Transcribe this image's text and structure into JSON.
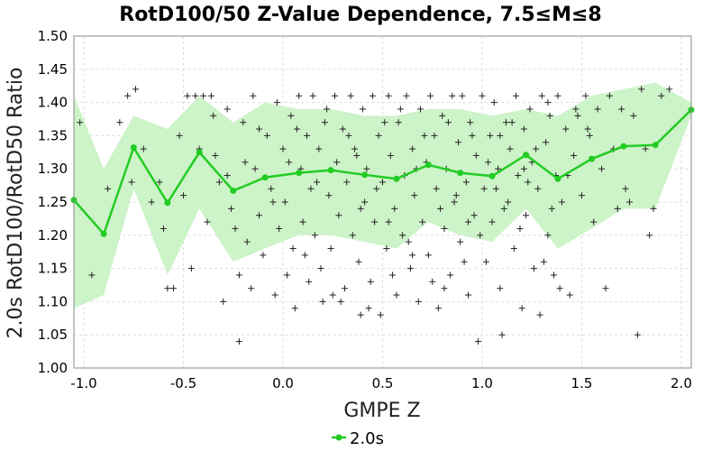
{
  "colors": {
    "band": "#cdf3c8",
    "line": "#22cc22",
    "scatter": "#222222",
    "grid": "#dddddd",
    "axis": "#888888"
  },
  "chart_data": {
    "type": "scatter",
    "title": "RotD100/50 Z-Value Dependence, 7.5≤M≤8",
    "xlabel": "GMPE Z",
    "ylabel": "2.0s RotD100/RotD50 Ratio",
    "xlim": [
      -1.05,
      2.05
    ],
    "ylim": [
      1.0,
      1.5
    ],
    "xticks": [
      -1.0,
      -0.5,
      0.0,
      0.5,
      1.0,
      1.5,
      2.0
    ],
    "xtick_labels": [
      "-1.0",
      "-0.5",
      "0.0",
      "0.5",
      "1.0",
      "1.5",
      "2.0"
    ],
    "yticks": [
      1.0,
      1.05,
      1.1,
      1.15,
      1.2,
      1.25,
      1.3,
      1.35,
      1.4,
      1.45,
      1.5
    ],
    "ytick_labels": [
      "1.00",
      "1.05",
      "1.10",
      "1.15",
      "1.20",
      "1.25",
      "1.30",
      "1.35",
      "1.40",
      "1.45",
      "1.50"
    ],
    "grid": true,
    "legend_position": "bottom-center",
    "series": [
      {
        "name": "2.0s",
        "type": "line",
        "x": [
          -1.05,
          -0.9,
          -0.75,
          -0.58,
          -0.42,
          -0.25,
          -0.09,
          0.08,
          0.24,
          0.41,
          0.57,
          0.73,
          0.89,
          1.05,
          1.22,
          1.38,
          1.55,
          1.71,
          1.87,
          2.05
        ],
        "y": [
          1.253,
          1.202,
          1.332,
          1.249,
          1.325,
          1.267,
          1.287,
          1.294,
          1.298,
          1.291,
          1.285,
          1.306,
          1.294,
          1.289,
          1.321,
          1.285,
          1.315,
          1.334,
          1.336,
          1.389
        ]
      }
    ],
    "band": {
      "x": [
        -1.05,
        -0.9,
        -0.75,
        -0.58,
        -0.42,
        -0.25,
        -0.09,
        0.08,
        0.24,
        0.41,
        0.57,
        0.73,
        0.89,
        1.05,
        1.22,
        1.38,
        1.55,
        1.71,
        1.87,
        2.05
      ],
      "upper": [
        1.41,
        1.3,
        1.38,
        1.36,
        1.41,
        1.37,
        1.4,
        1.39,
        1.39,
        1.38,
        1.38,
        1.39,
        1.39,
        1.38,
        1.39,
        1.38,
        1.41,
        1.42,
        1.43,
        1.4
      ],
      "lower": [
        1.09,
        1.11,
        1.27,
        1.14,
        1.24,
        1.16,
        1.18,
        1.2,
        1.2,
        1.19,
        1.18,
        1.22,
        1.2,
        1.19,
        1.24,
        1.18,
        1.21,
        1.24,
        1.24,
        1.38
      ]
    },
    "scatter": [
      [
        -1.02,
        1.37
      ],
      [
        -0.96,
        1.14
      ],
      [
        -0.88,
        1.27
      ],
      [
        -0.82,
        1.37
      ],
      [
        -0.78,
        1.41
      ],
      [
        -0.76,
        1.28
      ],
      [
        -0.74,
        1.42
      ],
      [
        -0.7,
        1.33
      ],
      [
        -0.66,
        1.25
      ],
      [
        -0.62,
        1.28
      ],
      [
        -0.6,
        1.21
      ],
      [
        -0.58,
        1.12
      ],
      [
        -0.55,
        1.12
      ],
      [
        -0.52,
        1.35
      ],
      [
        -0.5,
        1.26
      ],
      [
        -0.48,
        1.41
      ],
      [
        -0.46,
        1.15
      ],
      [
        -0.44,
        1.41
      ],
      [
        -0.42,
        1.33
      ],
      [
        -0.4,
        1.41
      ],
      [
        -0.38,
        1.22
      ],
      [
        -0.36,
        1.41
      ],
      [
        -0.34,
        1.32
      ],
      [
        -0.32,
        1.28
      ],
      [
        -0.3,
        1.1
      ],
      [
        -0.28,
        1.39
      ],
      [
        -0.26,
        1.24
      ],
      [
        -0.24,
        1.21
      ],
      [
        -0.22,
        1.14
      ],
      [
        -0.22,
        1.04
      ],
      [
        -0.2,
        1.37
      ],
      [
        -0.18,
        1.19
      ],
      [
        -0.16,
        1.12
      ],
      [
        -0.15,
        1.41
      ],
      [
        -0.14,
        1.3
      ],
      [
        -0.12,
        1.23
      ],
      [
        -0.1,
        1.17
      ],
      [
        -0.08,
        1.35
      ],
      [
        -0.06,
        1.27
      ],
      [
        -0.04,
        1.11
      ],
      [
        -0.03,
        1.4
      ],
      [
        -0.02,
        1.21
      ],
      [
        0.0,
        1.33
      ],
      [
        0.01,
        1.25
      ],
      [
        0.02,
        1.14
      ],
      [
        0.04,
        1.38
      ],
      [
        0.05,
        1.18
      ],
      [
        0.06,
        1.09
      ],
      [
        0.08,
        1.41
      ],
      [
        0.09,
        1.3
      ],
      [
        0.1,
        1.22
      ],
      [
        0.12,
        1.35
      ],
      [
        0.13,
        1.13
      ],
      [
        0.14,
        1.27
      ],
      [
        0.15,
        1.41
      ],
      [
        0.16,
        1.2
      ],
      [
        0.18,
        1.33
      ],
      [
        0.19,
        1.15
      ],
      [
        0.2,
        1.1
      ],
      [
        0.22,
        1.39
      ],
      [
        0.23,
        1.26
      ],
      [
        0.24,
        1.18
      ],
      [
        0.26,
        1.41
      ],
      [
        0.27,
        1.31
      ],
      [
        0.28,
        1.23
      ],
      [
        0.3,
        1.36
      ],
      [
        0.31,
        1.12
      ],
      [
        0.32,
        1.28
      ],
      [
        0.34,
        1.41
      ],
      [
        0.35,
        1.2
      ],
      [
        0.36,
        1.33
      ],
      [
        0.38,
        1.16
      ],
      [
        0.39,
        1.08
      ],
      [
        0.4,
        1.39
      ],
      [
        0.41,
        1.25
      ],
      [
        0.42,
        1.3
      ],
      [
        0.44,
        1.13
      ],
      [
        0.45,
        1.41
      ],
      [
        0.46,
        1.22
      ],
      [
        0.48,
        1.35
      ],
      [
        0.49,
        1.08
      ],
      [
        0.5,
        1.28
      ],
      [
        0.52,
        1.18
      ],
      [
        0.53,
        1.41
      ],
      [
        0.54,
        1.32
      ],
      [
        0.56,
        1.24
      ],
      [
        0.57,
        1.11
      ],
      [
        0.58,
        1.37
      ],
      [
        0.6,
        1.2
      ],
      [
        0.61,
        1.29
      ],
      [
        0.62,
        1.41
      ],
      [
        0.64,
        1.15
      ],
      [
        0.65,
        1.33
      ],
      [
        0.66,
        1.26
      ],
      [
        0.68,
        1.1
      ],
      [
        0.69,
        1.39
      ],
      [
        0.7,
        1.22
      ],
      [
        0.72,
        1.31
      ],
      [
        0.73,
        1.17
      ],
      [
        0.74,
        1.41
      ],
      [
        0.76,
        1.35
      ],
      [
        0.77,
        1.27
      ],
      [
        0.78,
        1.09
      ],
      [
        0.8,
        1.38
      ],
      [
        0.81,
        1.21
      ],
      [
        0.82,
        1.3
      ],
      [
        0.84,
        1.14
      ],
      [
        0.85,
        1.41
      ],
      [
        0.86,
        1.25
      ],
      [
        0.88,
        1.34
      ],
      [
        0.89,
        1.19
      ],
      [
        0.9,
        1.41
      ],
      [
        0.92,
        1.28
      ],
      [
        0.93,
        1.11
      ],
      [
        0.94,
        1.37
      ],
      [
        0.96,
        1.23
      ],
      [
        0.97,
        1.32
      ],
      [
        0.98,
        1.04
      ],
      [
        1.0,
        1.41
      ],
      [
        1.01,
        1.27
      ],
      [
        1.02,
        1.16
      ],
      [
        1.04,
        1.35
      ],
      [
        1.05,
        1.22
      ],
      [
        1.06,
        1.4
      ],
      [
        1.08,
        1.3
      ],
      [
        1.09,
        1.12
      ],
      [
        1.1,
        1.05
      ],
      [
        1.12,
        1.37
      ],
      [
        1.13,
        1.25
      ],
      [
        1.14,
        1.33
      ],
      [
        1.16,
        1.18
      ],
      [
        1.17,
        1.41
      ],
      [
        1.18,
        1.29
      ],
      [
        1.2,
        1.09
      ],
      [
        1.21,
        1.36
      ],
      [
        1.22,
        1.23
      ],
      [
        1.24,
        1.39
      ],
      [
        1.25,
        1.31
      ],
      [
        1.26,
        1.15
      ],
      [
        1.28,
        1.27
      ],
      [
        1.29,
        1.08
      ],
      [
        1.3,
        1.41
      ],
      [
        1.32,
        1.34
      ],
      [
        1.33,
        1.2
      ],
      [
        1.34,
        1.38
      ],
      [
        1.36,
        1.14
      ],
      [
        1.37,
        1.29
      ],
      [
        1.38,
        1.41
      ],
      [
        1.4,
        1.25
      ],
      [
        1.42,
        1.36
      ],
      [
        1.44,
        1.11
      ],
      [
        1.46,
        1.32
      ],
      [
        1.48,
        1.38
      ],
      [
        1.5,
        1.26
      ],
      [
        1.52,
        1.41
      ],
      [
        1.54,
        1.35
      ],
      [
        1.56,
        1.22
      ],
      [
        1.58,
        1.39
      ],
      [
        1.6,
        1.3
      ],
      [
        1.62,
        1.12
      ],
      [
        1.64,
        1.41
      ],
      [
        1.66,
        1.33
      ],
      [
        1.68,
        1.24
      ],
      [
        1.7,
        1.39
      ],
      [
        1.72,
        1.27
      ],
      [
        1.74,
        1.25
      ],
      [
        1.76,
        1.38
      ],
      [
        1.78,
        1.05
      ],
      [
        1.8,
        1.42
      ],
      [
        1.82,
        1.33
      ],
      [
        1.84,
        1.2
      ],
      [
        1.86,
        1.24
      ],
      [
        1.9,
        1.41
      ],
      [
        1.94,
        1.42
      ],
      [
        -0.35,
        1.38
      ],
      [
        -0.28,
        1.29
      ],
      [
        0.03,
        1.31
      ],
      [
        0.21,
        1.37
      ],
      [
        0.37,
        1.32
      ],
      [
        0.47,
        1.27
      ],
      [
        0.63,
        1.19
      ],
      [
        0.75,
        1.13
      ],
      [
        0.87,
        1.26
      ],
      [
        0.95,
        1.35
      ],
      [
        1.07,
        1.27
      ],
      [
        1.19,
        1.21
      ],
      [
        1.31,
        1.16
      ],
      [
        1.43,
        1.29
      ],
      [
        -0.12,
        1.36
      ],
      [
        0.11,
        1.17
      ],
      [
        0.29,
        1.1
      ],
      [
        0.43,
        1.09
      ],
      [
        0.55,
        1.14
      ],
      [
        0.67,
        1.3
      ],
      [
        0.79,
        1.24
      ],
      [
        0.91,
        1.16
      ],
      [
        1.03,
        1.31
      ],
      [
        1.15,
        1.37
      ],
      [
        1.27,
        1.33
      ],
      [
        1.39,
        1.12
      ],
      [
        -0.05,
        1.25
      ],
      [
        0.17,
        1.28
      ],
      [
        0.33,
        1.35
      ],
      [
        0.51,
        1.37
      ],
      [
        0.59,
        1.39
      ],
      [
        0.71,
        1.35
      ],
      [
        0.83,
        1.37
      ],
      [
        0.99,
        1.2
      ],
      [
        1.11,
        1.24
      ],
      [
        1.23,
        1.28
      ],
      [
        1.35,
        1.24
      ],
      [
        1.47,
        1.39
      ],
      [
        -0.19,
        1.31
      ],
      [
        0.07,
        1.36
      ],
      [
        0.25,
        1.11
      ],
      [
        0.39,
        1.24
      ],
      [
        0.53,
        1.22
      ],
      [
        0.65,
        1.17
      ],
      [
        0.81,
        1.12
      ],
      [
        0.93,
        1.22
      ],
      [
        1.09,
        1.35
      ],
      [
        1.21,
        1.3
      ],
      [
        1.33,
        1.4
      ],
      [
        1.53,
        1.36
      ]
    ]
  }
}
